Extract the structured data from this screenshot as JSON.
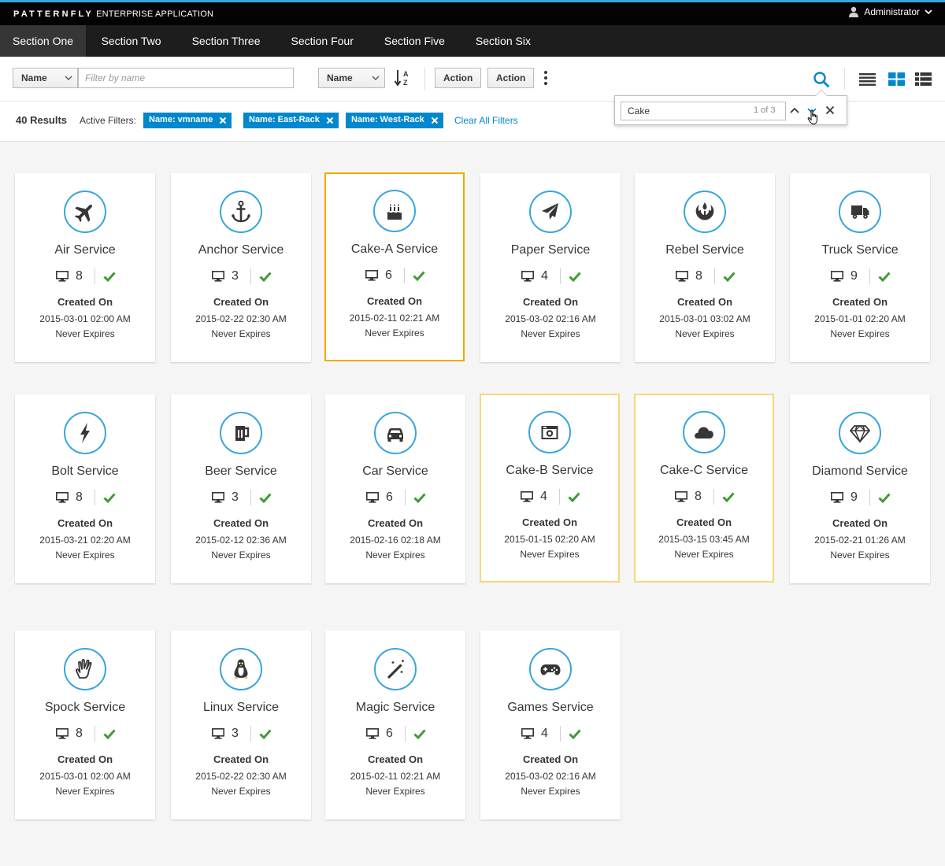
{
  "header": {
    "brand_logo": "PATTERNFLY",
    "brand_sub": "ENTERPRISE APPLICATION",
    "user": "Administrator"
  },
  "nav": [
    {
      "label": "Section One",
      "active": true
    },
    {
      "label": "Section Two",
      "active": false
    },
    {
      "label": "Section Three",
      "active": false
    },
    {
      "label": "Section Four",
      "active": false
    },
    {
      "label": "Section Five",
      "active": false
    },
    {
      "label": "Section Six",
      "active": false
    }
  ],
  "toolbar": {
    "filter_field": "Name",
    "filter_placeholder": "Filter by name",
    "sort_field": "Name",
    "action1": "Action",
    "action2": "Action"
  },
  "find": {
    "value": "Cake",
    "count": "1 of 3"
  },
  "filters": {
    "results": "40 Results",
    "active_label": "Active Filters:",
    "chips": [
      "Name: vmname",
      "Name: East-Rack",
      "Name: West-Rack"
    ],
    "clear_all": "Clear All Filters"
  },
  "card_labels": {
    "created": "Created On",
    "expires": "Never Expires"
  },
  "colors": {
    "accent": "#39a5dc",
    "chip": "#0088ce",
    "success": "#3f9c35",
    "highlight_current": "#f0ab00",
    "highlight_match": "#f9d67a"
  },
  "cards": [
    {
      "title": "Air Service",
      "icon": "plane-icon",
      "count": "8",
      "date": "2015-03-01 02:00 AM",
      "highlight": "none"
    },
    {
      "title": "Anchor Service",
      "icon": "anchor-icon",
      "count": "3",
      "date": "2015-02-22 02:30 AM",
      "highlight": "none"
    },
    {
      "title": "Cake-A Service",
      "icon": "birthday-cake-icon",
      "count": "6",
      "date": "2015-02-11 02:21 AM",
      "highlight": "current"
    },
    {
      "title": "Paper Service",
      "icon": "paper-plane-icon",
      "count": "4",
      "date": "2015-03-02 02:16 AM",
      "highlight": "none"
    },
    {
      "title": "Rebel Service",
      "icon": "rebel-icon",
      "count": "8",
      "date": "2015-03-01 03:02 AM",
      "highlight": "none"
    },
    {
      "title": "Truck Service",
      "icon": "truck-icon",
      "count": "9",
      "date": "2015-01-01 02:20 AM",
      "highlight": "none"
    },
    {
      "title": "Bolt Service",
      "icon": "bolt-icon",
      "count": "8",
      "date": "2015-03-21 02:20 AM",
      "highlight": "none"
    },
    {
      "title": "Beer Service",
      "icon": "beer-icon",
      "count": "3",
      "date": "2015-02-12 02:36 AM",
      "highlight": "none"
    },
    {
      "title": "Car Service",
      "icon": "car-icon",
      "count": "6",
      "date": "2015-02-16 02:18 AM",
      "highlight": "none"
    },
    {
      "title": "Cake-B Service",
      "icon": "camera-icon",
      "count": "4",
      "date": "2015-01-15 02:20 AM",
      "highlight": "match"
    },
    {
      "title": "Cake-C Service",
      "icon": "cloud-icon",
      "count": "8",
      "date": "2015-03-15 03:45 AM",
      "highlight": "match"
    },
    {
      "title": "Diamond Service",
      "icon": "diamond-icon",
      "count": "9",
      "date": "2015-02-21 01:26 AM",
      "highlight": "none"
    },
    {
      "title": "Spock Service",
      "icon": "hand-spock-icon",
      "count": "8",
      "date": "2015-03-01 02:00 AM",
      "highlight": "none"
    },
    {
      "title": "Linux Service",
      "icon": "linux-icon",
      "count": "3",
      "date": "2015-02-22 02:30 AM",
      "highlight": "none"
    },
    {
      "title": "Magic Service",
      "icon": "magic-wand-icon",
      "count": "6",
      "date": "2015-02-11 02:21 AM",
      "highlight": "none"
    },
    {
      "title": "Games Service",
      "icon": "gamepad-icon",
      "count": "4",
      "date": "2015-03-02 02:16 AM",
      "highlight": "none"
    }
  ]
}
